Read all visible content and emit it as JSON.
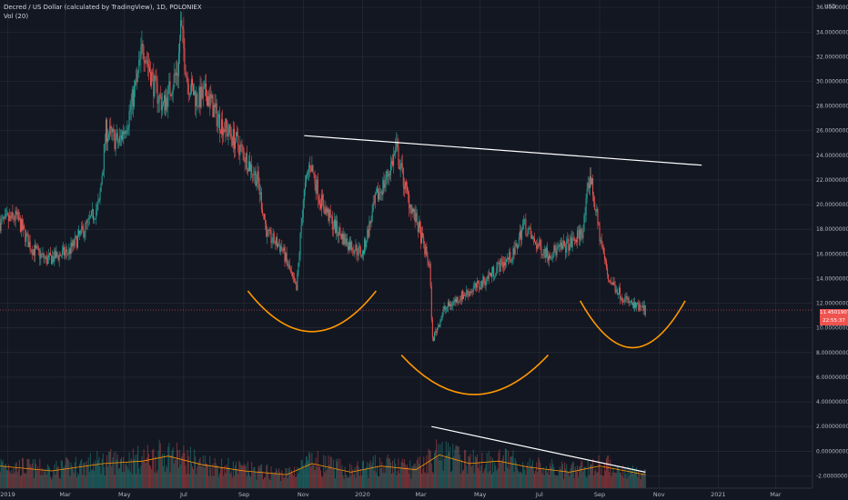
{
  "header": {
    "title": "Decred / US Dollar (calculated by TradingView), 1D, POLONIEX",
    "indicator": "Vol (20)"
  },
  "price_axis": {
    "unit": "USD"
  },
  "last_price": {
    "value": "11.45019077",
    "countdown": "22:55:37"
  },
  "colors": {
    "background": "#131722",
    "up": "#26a69a",
    "down": "#ef5350",
    "drawings": "#ffffff",
    "arcs": "#ff9800",
    "volume_ma": "#ff9800"
  },
  "chart_data": {
    "type": "candlestick",
    "title": "Decred / US Dollar (calculated by TradingView), 1D, POLONIEX",
    "y_axis": {
      "label": "USD",
      "range": [
        -3.0,
        36.6
      ],
      "ticks": [
        "36.00000000",
        "34.00000000",
        "32.00000000",
        "30.00000000",
        "28.00000000",
        "26.00000000",
        "24.00000000",
        "22.00000000",
        "20.00000000",
        "18.00000000",
        "16.00000000",
        "14.00000000",
        "12.00000000",
        "10.00000000",
        "8.00000000",
        "6.00000000",
        "4.00000000",
        "2.00000000",
        "0.00000000",
        "-2.00000000"
      ]
    },
    "x_axis": {
      "range": [
        "2018-12-24",
        "2021-04-08"
      ],
      "ticks": [
        {
          "label": "2019",
          "date": "2019-01-01"
        },
        {
          "label": "Mar",
          "date": "2019-03-01"
        },
        {
          "label": "May",
          "date": "2019-05-01"
        },
        {
          "label": "Jul",
          "date": "2019-07-01"
        },
        {
          "label": "Sep",
          "date": "2019-09-01"
        },
        {
          "label": "Nov",
          "date": "2019-11-01"
        },
        {
          "label": "2020",
          "date": "2020-01-01"
        },
        {
          "label": "Mar",
          "date": "2020-03-01"
        },
        {
          "label": "May",
          "date": "2020-05-01"
        },
        {
          "label": "Jul",
          "date": "2020-07-01"
        },
        {
          "label": "Sep",
          "date": "2020-09-01"
        },
        {
          "label": "Nov",
          "date": "2020-11-01"
        },
        {
          "label": "2021",
          "date": "2021-01-01"
        },
        {
          "label": "Mar",
          "date": "2021-03-01"
        }
      ]
    },
    "grid": true,
    "price_path": [
      {
        "date": "2018-12-24",
        "close": 18.5
      },
      {
        "date": "2019-01-10",
        "close": 19.0
      },
      {
        "date": "2019-01-25",
        "close": 16.5
      },
      {
        "date": "2019-02-10",
        "close": 15.5
      },
      {
        "date": "2019-03-05",
        "close": 16.2
      },
      {
        "date": "2019-03-25",
        "close": 18.5
      },
      {
        "date": "2019-04-05",
        "close": 20.0
      },
      {
        "date": "2019-04-12",
        "close": 26.0
      },
      {
        "date": "2019-04-25",
        "close": 25.0
      },
      {
        "date": "2019-05-05",
        "close": 27.0
      },
      {
        "date": "2019-05-15",
        "close": 30.5
      },
      {
        "date": "2019-05-20",
        "close": 33.0
      },
      {
        "date": "2019-06-01",
        "close": 29.5
      },
      {
        "date": "2019-06-10",
        "close": 28.0
      },
      {
        "date": "2019-06-25",
        "close": 31.0
      },
      {
        "date": "2019-06-28",
        "close": 34.5
      },
      {
        "date": "2019-07-05",
        "close": 30.0
      },
      {
        "date": "2019-07-15",
        "close": 28.5
      },
      {
        "date": "2019-07-25",
        "close": 29.0
      },
      {
        "date": "2019-08-05",
        "close": 27.0
      },
      {
        "date": "2019-08-25",
        "close": 25.0
      },
      {
        "date": "2019-09-05",
        "close": 23.5
      },
      {
        "date": "2019-09-15",
        "close": 22.0
      },
      {
        "date": "2019-09-25",
        "close": 17.5
      },
      {
        "date": "2019-10-10",
        "close": 16.5
      },
      {
        "date": "2019-10-25",
        "close": 13.0
      },
      {
        "date": "2019-11-01",
        "close": 20.5
      },
      {
        "date": "2019-11-08",
        "close": 23.5
      },
      {
        "date": "2019-11-18",
        "close": 20.5
      },
      {
        "date": "2019-12-01",
        "close": 18.5
      },
      {
        "date": "2019-12-15",
        "close": 17.0
      },
      {
        "date": "2020-01-01",
        "close": 16.0
      },
      {
        "date": "2020-01-15",
        "close": 20.5
      },
      {
        "date": "2020-01-25",
        "close": 22.0
      },
      {
        "date": "2020-02-05",
        "close": 24.5
      },
      {
        "date": "2020-02-15",
        "close": 21.0
      },
      {
        "date": "2020-02-28",
        "close": 18.0
      },
      {
        "date": "2020-03-10",
        "close": 15.0
      },
      {
        "date": "2020-03-13",
        "close": 9.0
      },
      {
        "date": "2020-03-25",
        "close": 11.5
      },
      {
        "date": "2020-04-10",
        "close": 12.5
      },
      {
        "date": "2020-05-01",
        "close": 13.5
      },
      {
        "date": "2020-05-20",
        "close": 15.0
      },
      {
        "date": "2020-06-05",
        "close": 16.0
      },
      {
        "date": "2020-06-15",
        "close": 18.5
      },
      {
        "date": "2020-06-25",
        "close": 17.0
      },
      {
        "date": "2020-07-10",
        "close": 16.0
      },
      {
        "date": "2020-07-25",
        "close": 16.5
      },
      {
        "date": "2020-08-05",
        "close": 17.0
      },
      {
        "date": "2020-08-15",
        "close": 18.0
      },
      {
        "date": "2020-08-22",
        "close": 22.5
      },
      {
        "date": "2020-09-01",
        "close": 17.5
      },
      {
        "date": "2020-09-10",
        "close": 14.0
      },
      {
        "date": "2020-09-25",
        "close": 12.5
      },
      {
        "date": "2020-10-05",
        "close": 11.8
      },
      {
        "date": "2020-10-18",
        "close": 11.45
      }
    ],
    "volume_ma_path": [
      {
        "date": "2018-12-24",
        "value": -1.2
      },
      {
        "date": "2019-02-15",
        "value": -1.6
      },
      {
        "date": "2019-04-10",
        "value": -1.0
      },
      {
        "date": "2019-05-20",
        "value": -0.8
      },
      {
        "date": "2019-06-15",
        "value": -0.4
      },
      {
        "date": "2019-07-20",
        "value": -1.1
      },
      {
        "date": "2019-09-01",
        "value": -1.6
      },
      {
        "date": "2019-10-15",
        "value": -1.9
      },
      {
        "date": "2019-11-10",
        "value": -1.0
      },
      {
        "date": "2019-12-20",
        "value": -1.7
      },
      {
        "date": "2020-01-20",
        "value": -1.2
      },
      {
        "date": "2020-02-25",
        "value": -1.5
      },
      {
        "date": "2020-03-20",
        "value": -0.3
      },
      {
        "date": "2020-04-20",
        "value": -1.0
      },
      {
        "date": "2020-05-20",
        "value": -0.8
      },
      {
        "date": "2020-06-20",
        "value": -1.3
      },
      {
        "date": "2020-08-01",
        "value": -1.7
      },
      {
        "date": "2020-09-01",
        "value": -1.2
      },
      {
        "date": "2020-10-18",
        "value": -1.9
      }
    ],
    "drawings": {
      "trendlines": [
        {
          "from": {
            "date": "2019-11-02",
            "price": 25.6
          },
          "to": {
            "date": "2020-12-15",
            "price": 23.2
          }
        },
        {
          "from": {
            "date": "2020-03-12",
            "price": 2.0
          },
          "to": {
            "date": "2020-10-18",
            "price": -1.7
          }
        }
      ],
      "arcs": [
        {
          "from": {
            "date": "2019-09-05",
            "price": 13.0
          },
          "bottom": {
            "date": "2019-11-10",
            "price": 9.7
          },
          "to": {
            "date": "2020-01-15",
            "price": 13.0
          }
        },
        {
          "from": {
            "date": "2020-02-10",
            "price": 7.8
          },
          "bottom": {
            "date": "2020-04-25",
            "price": 4.6
          },
          "to": {
            "date": "2020-07-10",
            "price": 7.8
          }
        },
        {
          "from": {
            "date": "2020-08-12",
            "price": 12.2
          },
          "bottom": {
            "date": "2020-10-05",
            "price": 8.4
          },
          "to": {
            "date": "2020-11-28",
            "price": 12.2
          }
        }
      ]
    }
  }
}
